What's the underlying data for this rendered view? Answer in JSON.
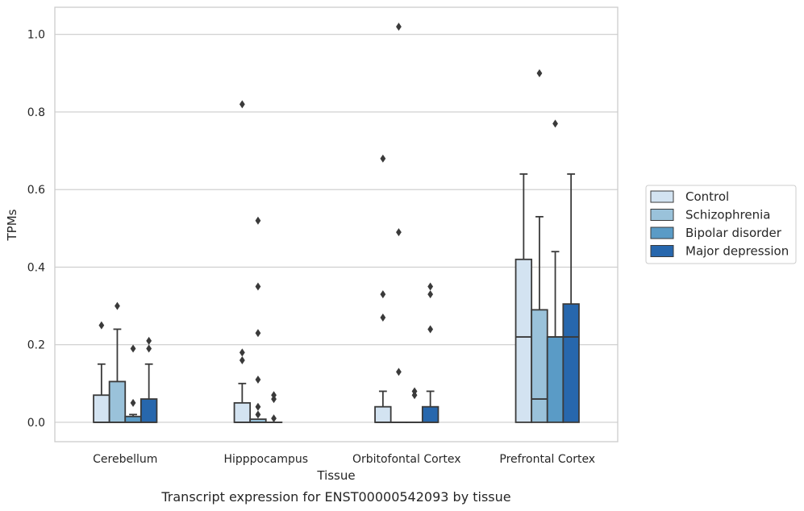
{
  "chart_data": {
    "type": "box",
    "title": "",
    "caption": "Transcript expression for ENST00000542093 by tissue",
    "xlabel": "Tissue",
    "ylabel": "TPMs",
    "ylim": [
      -0.05,
      1.07
    ],
    "yticks": [
      "0.0",
      "0.2",
      "0.4",
      "0.6",
      "0.8",
      "1.0"
    ],
    "grid": "horizontal",
    "legend_position": "right",
    "categories": [
      "Cerebellum",
      "Hipppocampus",
      "Orbitofontal Cortex",
      "Prefrontal Cortex"
    ],
    "series": [
      {
        "name": "Control",
        "color": "#d3e3f1",
        "boxes": [
          {
            "q1": 0.0,
            "median": 0.0,
            "q3": 0.07,
            "whisker_low": 0.0,
            "whisker_high": 0.15,
            "outliers": [
              0.25
            ]
          },
          {
            "q1": 0.0,
            "median": 0.0,
            "q3": 0.05,
            "whisker_low": 0.0,
            "whisker_high": 0.1,
            "outliers": [
              0.16,
              0.18,
              0.82
            ]
          },
          {
            "q1": 0.0,
            "median": 0.0,
            "q3": 0.04,
            "whisker_low": 0.0,
            "whisker_high": 0.08,
            "outliers": [
              0.27,
              0.33,
              0.68
            ]
          },
          {
            "q1": 0.0,
            "median": 0.22,
            "q3": 0.42,
            "whisker_low": 0.0,
            "whisker_high": 0.64,
            "outliers": []
          }
        ]
      },
      {
        "name": "Schizophrenia",
        "color": "#9ac2da",
        "boxes": [
          {
            "q1": 0.0,
            "median": 0.0,
            "q3": 0.105,
            "whisker_low": 0.0,
            "whisker_high": 0.24,
            "outliers": [
              0.3
            ]
          },
          {
            "q1": 0.0,
            "median": 0.0,
            "q3": 0.008,
            "whisker_low": 0.0,
            "whisker_high": 0.008,
            "outliers": [
              0.02,
              0.04,
              0.11,
              0.23,
              0.35,
              0.52
            ]
          },
          {
            "q1": 0.0,
            "median": 0.0,
            "q3": 0.0,
            "whisker_low": 0.0,
            "whisker_high": 0.0,
            "outliers": [
              0.13,
              0.49,
              1.02
            ]
          },
          {
            "q1": 0.0,
            "median": 0.06,
            "q3": 0.29,
            "whisker_low": 0.0,
            "whisker_high": 0.53,
            "outliers": [
              0.9
            ]
          }
        ]
      },
      {
        "name": "Bipolar disorder",
        "color": "#5a9bc6",
        "boxes": [
          {
            "q1": 0.0,
            "median": 0.0,
            "q3": 0.015,
            "whisker_low": 0.0,
            "whisker_high": 0.02,
            "outliers": [
              0.05,
              0.19
            ]
          },
          {
            "q1": 0.0,
            "median": 0.0,
            "q3": 0.0,
            "whisker_low": 0.0,
            "whisker_high": 0.0,
            "outliers": [
              0.01,
              0.06,
              0.07
            ]
          },
          {
            "q1": 0.0,
            "median": 0.0,
            "q3": 0.0,
            "whisker_low": 0.0,
            "whisker_high": 0.0,
            "outliers": [
              0.07,
              0.08
            ]
          },
          {
            "q1": 0.0,
            "median": 0.22,
            "q3": 0.22,
            "whisker_low": 0.0,
            "whisker_high": 0.44,
            "outliers": [
              0.77
            ]
          }
        ]
      },
      {
        "name": "Major depression",
        "color": "#2767ad",
        "boxes": [
          {
            "q1": 0.0,
            "median": 0.0,
            "q3": 0.06,
            "whisker_low": 0.0,
            "whisker_high": 0.15,
            "outliers": [
              0.19,
              0.21
            ]
          },
          null,
          {
            "q1": 0.0,
            "median": 0.0,
            "q3": 0.04,
            "whisker_low": 0.0,
            "whisker_high": 0.08,
            "outliers": [
              0.24,
              0.33,
              0.35
            ]
          },
          {
            "q1": 0.0,
            "median": 0.22,
            "q3": 0.305,
            "whisker_low": 0.0,
            "whisker_high": 0.64,
            "outliers": []
          }
        ]
      }
    ]
  }
}
